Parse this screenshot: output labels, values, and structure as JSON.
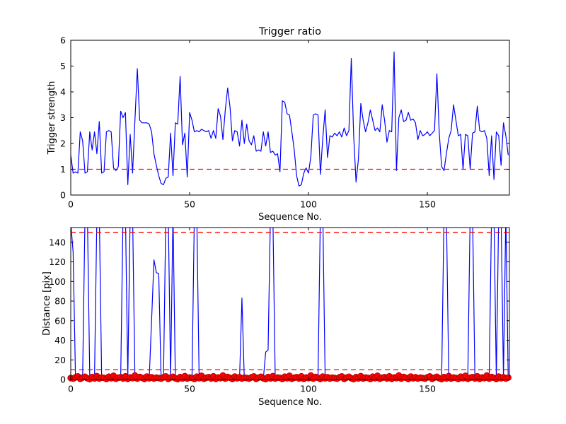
{
  "figure": {
    "background": "#ffffff",
    "line_color": "#0000ff",
    "threshold_color": "#ff0000",
    "marker_color": "#ff0000",
    "marker_edge_color": "#990000"
  },
  "chart_data": [
    {
      "type": "line",
      "title": "Trigger ratio",
      "xlabel": "Sequence No.",
      "ylabel": "Trigger strength",
      "xlim": [
        0,
        184.5
      ],
      "ylim": [
        0,
        6
      ],
      "xticks": [
        0,
        50,
        100,
        150
      ],
      "yticks": [
        0,
        1,
        2,
        3,
        4,
        5,
        6
      ],
      "grid": false,
      "legend": null,
      "line_color": "#0000ff",
      "thresholds": [
        {
          "y": 1,
          "color": "#ff0000",
          "style": "dashed"
        }
      ],
      "x_is_index": true,
      "values": [
        1.55,
        0.85,
        0.9,
        0.85,
        2.45,
        2.1,
        0.85,
        0.9,
        2.45,
        1.75,
        2.45,
        1.6,
        2.85,
        0.85,
        0.9,
        2.45,
        2.5,
        2.45,
        1.05,
        0.95,
        1.1,
        3.25,
        3.0,
        3.2,
        0.4,
        2.35,
        0.85,
        2.9,
        4.9,
        2.9,
        2.8,
        2.8,
        2.8,
        2.75,
        2.45,
        1.6,
        1.15,
        0.75,
        0.45,
        0.4,
        0.65,
        0.7,
        2.4,
        0.75,
        2.8,
        2.75,
        4.6,
        1.95,
        2.4,
        0.7,
        3.2,
        2.9,
        2.45,
        2.5,
        2.45,
        2.55,
        2.5,
        2.45,
        2.5,
        2.2,
        2.5,
        2.2,
        3.35,
        3.05,
        2.15,
        3.3,
        4.15,
        3.4,
        2.1,
        2.5,
        2.45,
        1.9,
        2.9,
        2.0,
        2.75,
        2.1,
        1.95,
        2.3,
        1.7,
        1.75,
        1.7,
        2.45,
        1.9,
        2.45,
        1.65,
        1.7,
        1.55,
        1.6,
        0.9,
        3.65,
        3.6,
        3.15,
        3.1,
        2.45,
        1.75,
        0.75,
        0.35,
        0.4,
        0.85,
        1.05,
        0.85,
        1.5,
        3.1,
        3.15,
        3.1,
        0.8,
        2.2,
        3.3,
        1.45,
        2.3,
        2.25,
        2.4,
        2.3,
        2.45,
        2.25,
        2.6,
        2.3,
        2.5,
        5.3,
        2.3,
        0.5,
        1.4,
        3.55,
        2.9,
        2.45,
        2.8,
        3.3,
        2.9,
        2.5,
        2.6,
        2.45,
        3.5,
        2.9,
        2.05,
        2.5,
        2.45,
        5.55,
        0.95,
        3.0,
        3.3,
        2.85,
        2.9,
        3.2,
        2.9,
        2.95,
        2.8,
        2.15,
        2.5,
        2.3,
        2.35,
        2.45,
        2.3,
        2.4,
        2.5,
        4.7,
        2.4,
        1.1,
        0.95,
        1.6,
        2.2,
        2.5,
        3.5,
        2.9,
        2.3,
        2.35,
        1.0,
        2.35,
        2.3,
        1.0,
        2.4,
        2.45,
        3.45,
        2.5,
        2.45,
        2.5,
        2.2,
        0.75,
        2.3,
        0.6,
        2.45,
        2.3,
        1.15,
        2.8,
        2.3,
        1.55
      ]
    },
    {
      "type": "line+scatter",
      "title": "",
      "xlabel": "Sequence No.",
      "ylabel": "Distance [pix]",
      "xlim": [
        0,
        184.5
      ],
      "ylim": [
        0,
        155
      ],
      "xticks": [
        0,
        50,
        100,
        150
      ],
      "yticks": [
        0,
        20,
        40,
        60,
        80,
        100,
        120,
        140
      ],
      "grid": false,
      "legend": null,
      "line_color": "#0000ff",
      "thresholds": [
        {
          "y": 150,
          "color": "#ff0000",
          "style": "dashed"
        },
        {
          "y": 10,
          "color": "#ff0000",
          "style": "dashed"
        }
      ],
      "x_is_index": true,
      "clip_note": "spike values above ylim max are clipped at the axes top",
      "values": [
        160,
        130,
        1,
        1.5,
        0.8,
        2.5,
        170,
        170,
        1.8,
        1,
        2.2,
        170,
        170,
        2,
        0.5,
        1.3,
        2.4,
        0.9,
        1.7,
        0.6,
        2.1,
        1.1,
        170,
        170,
        1.4,
        170,
        170,
        0.6,
        1.6,
        1,
        2,
        0.7,
        1.4,
        1,
        60,
        122,
        109,
        108,
        1,
        1,
        170,
        170,
        2.5,
        170,
        0.6,
        1.8,
        1,
        2.2,
        0.7,
        1.5,
        2,
        0.5,
        170,
        170,
        0.9,
        1.7,
        0.6,
        2.1,
        1.1,
        0.5,
        1.9,
        1.4,
        0.8,
        2.3,
        0.6,
        1.6,
        1,
        2,
        0.7,
        1.4,
        2.2,
        0.9,
        83,
        0.5,
        1,
        0.5,
        2,
        1.5,
        0.8,
        2.5,
        1.2,
        0.6,
        28,
        30,
        170,
        170,
        1,
        2,
        0.5,
        1.3,
        2.4,
        0.9,
        1.7,
        0.6,
        2.1,
        1.1,
        0.5,
        1.9,
        1.4,
        0.8,
        2.3,
        0.6,
        1.6,
        1,
        2,
        170,
        170,
        2.2,
        0.9,
        1.8,
        0.5,
        1,
        0.5,
        2,
        1.5,
        0.8,
        2.5,
        1.2,
        0.6,
        1.8,
        1,
        2.2,
        0.7,
        1.5,
        2,
        0.5,
        1.3,
        2.4,
        0.9,
        1.7,
        0.6,
        2.1,
        1.1,
        0.5,
        1.9,
        1.4,
        0.8,
        2.3,
        0.6,
        1.6,
        1,
        2,
        0.7,
        1.4,
        2.2,
        0.9,
        1.8,
        0.5,
        1,
        0.5,
        2,
        1.5,
        0.8,
        2.5,
        1.2,
        0.6,
        1.8,
        170,
        170,
        0.7,
        1.5,
        2,
        0.5,
        1.3,
        2.4,
        0.9,
        1.7,
        0.6,
        170,
        170,
        0.5,
        1.9,
        1.4,
        0.8,
        2.3,
        0.6,
        1.6,
        170,
        170,
        0.7,
        170,
        170,
        0.9,
        170,
        0.5
      ],
      "scatter": {
        "marker": "circle",
        "color": "#ff0000",
        "edge_color": "#990000",
        "values": [
          1.5,
          0.8,
          2.2,
          3.1,
          0.6,
          1.9,
          2.8,
          1.2,
          0.4,
          2.5,
          1.1,
          3.4,
          0.9,
          2.0,
          1.6,
          0.5,
          2.9,
          1.3,
          3.8,
          0.7,
          1.8,
          2.4,
          1.0,
          3.2,
          0.6,
          2.1,
          1.4,
          4.0,
          0.8,
          2.6,
          1.7,
          0.5,
          3.0,
          1.2,
          2.3,
          0.9,
          1.9,
          1.5,
          0.8,
          2.2,
          3.1,
          0.6,
          1.9,
          2.8,
          1.2,
          0.4,
          2.5,
          1.1,
          3.4,
          0.9,
          2.0,
          1.6,
          0.5,
          2.9,
          1.3,
          3.8,
          0.7,
          1.8,
          2.4,
          1.0,
          3.2,
          0.6,
          2.1,
          1.4,
          4.0,
          0.8,
          2.6,
          1.7,
          0.5,
          3.0,
          1.2,
          2.3,
          0.9,
          1.9,
          1.5,
          0.8,
          2.2,
          3.1,
          0.6,
          1.9,
          2.8,
          1.2,
          0.4,
          2.5,
          1.1,
          3.4,
          0.9,
          2.0,
          1.6,
          0.5,
          2.9,
          1.3,
          3.8,
          0.7,
          1.8,
          2.4,
          1.0,
          3.2,
          0.6,
          2.1,
          1.4,
          4.0,
          0.8,
          2.6,
          1.7,
          0.5,
          3.0,
          1.2,
          2.3,
          0.9,
          1.9,
          1.5,
          0.8,
          2.2,
          3.1,
          0.6,
          1.9,
          2.8,
          1.2,
          0.4,
          2.5,
          1.1,
          3.4,
          0.9,
          2.0,
          1.6,
          0.5,
          2.9,
          1.3,
          3.8,
          0.7,
          1.8,
          2.4,
          1.0,
          3.2,
          0.6,
          2.1,
          1.4,
          4.0,
          0.8,
          2.6,
          1.7,
          0.5,
          3.0,
          1.2,
          2.3,
          0.9,
          1.9,
          1.5,
          0.8,
          2.2,
          3.1,
          0.6,
          1.9,
          2.8,
          1.2,
          0.4,
          2.5,
          1.1,
          3.4,
          0.9,
          2.0,
          1.6,
          0.5,
          2.9,
          1.3,
          3.8,
          0.7,
          1.8,
          2.4,
          1.0,
          3.2,
          0.6,
          2.1,
          1.4,
          4.0,
          0.8,
          2.6,
          1.7,
          0.5,
          3.0,
          1.2,
          2.3,
          0.9,
          1.9
        ]
      }
    }
  ]
}
